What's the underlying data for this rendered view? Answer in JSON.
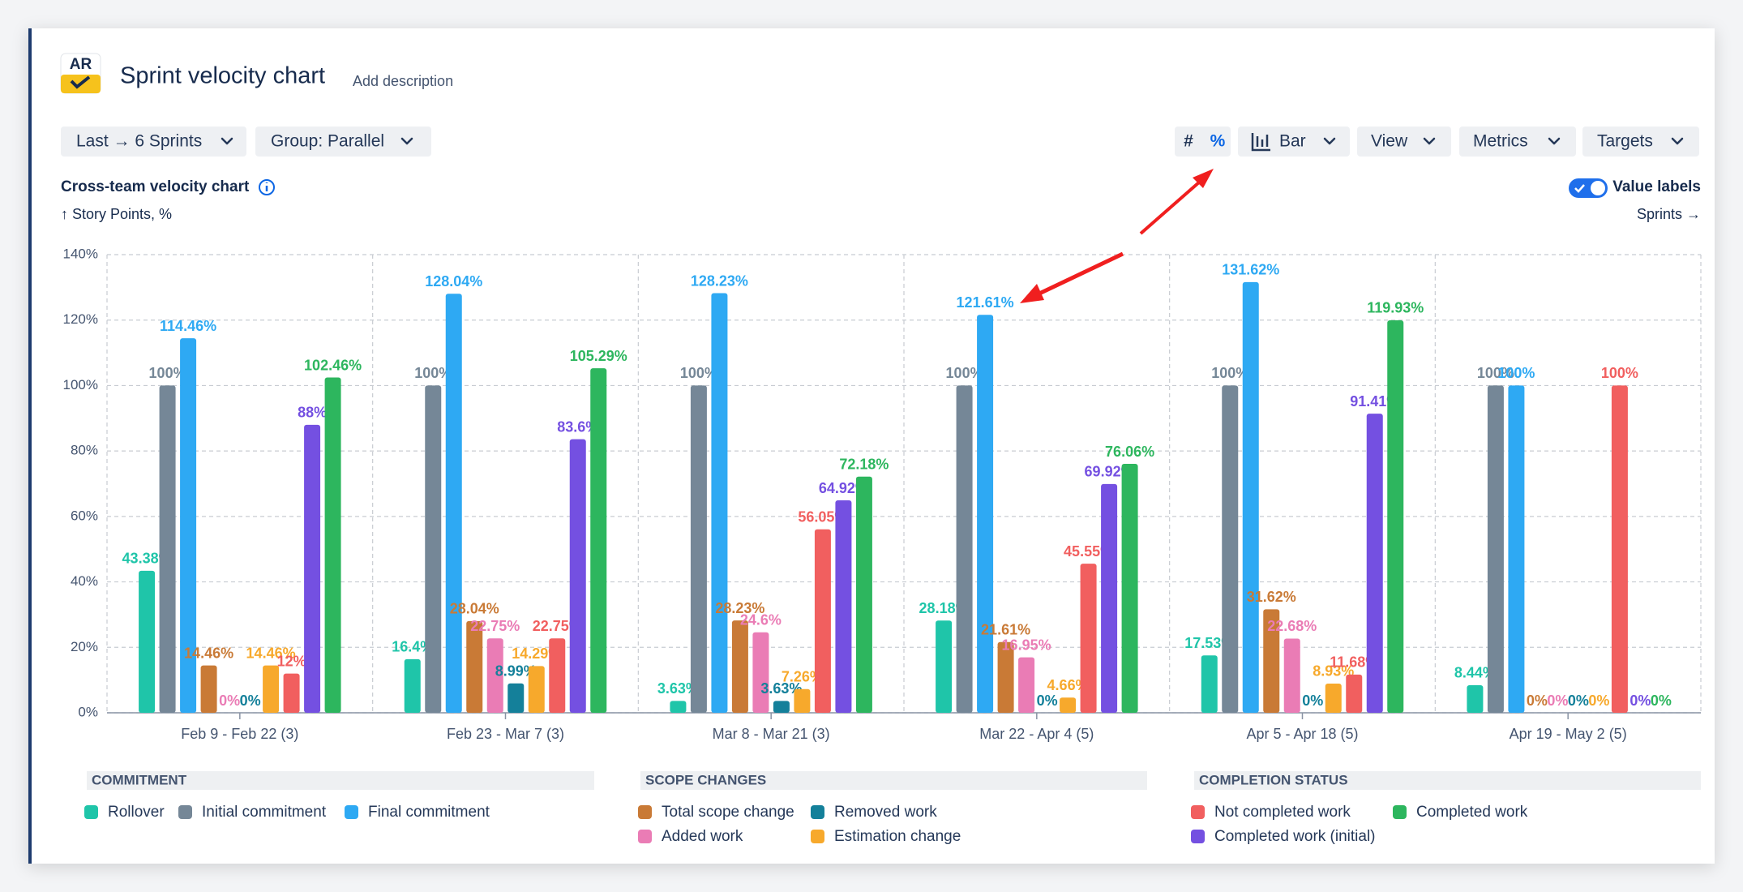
{
  "header": {
    "logo": "AR",
    "title": "Sprint velocity chart",
    "add_description": "Add description"
  },
  "toolbar": {
    "range": "Last → 6 Sprints",
    "group": "Group: Parallel",
    "count_mode": "#",
    "percent_mode": "%",
    "chart_type": "Bar",
    "view": "View",
    "metrics": "Metrics",
    "targets": "Targets"
  },
  "value_labels_toggle": "Value labels",
  "chart_data": {
    "type": "bar",
    "title": "Cross-team velocity chart",
    "y_label": "↑ Story Points, %",
    "x_label": "Sprints →",
    "categories": [
      "Feb 9 - Feb 22 (3)",
      "Feb 23 - Mar 7 (3)",
      "Mar 8 - Mar 21 (3)",
      "Mar 22 - Apr 4 (5)",
      "Apr 5 - Apr 18 (5)",
      "Apr 19 - May 2 (5)"
    ],
    "ylim": [
      0,
      140
    ],
    "yticks": [
      {
        "value": 0,
        "label": "0%"
      },
      {
        "value": 20,
        "label": "20%"
      },
      {
        "value": 40,
        "label": "40%"
      },
      {
        "value": 60,
        "label": "60%"
      },
      {
        "value": 80,
        "label": "80%"
      },
      {
        "value": 100,
        "label": "100%"
      },
      {
        "value": 120,
        "label": "120%"
      },
      {
        "value": 140,
        "label": "140%"
      }
    ],
    "grid": true,
    "legend_groups": [
      "COMMITMENT",
      "SCOPE CHANGES",
      "COMPLETION STATUS"
    ],
    "series": [
      {
        "name": "Rollover",
        "color": "#1fc5a9",
        "values": [
          43.38,
          16.4,
          3.63,
          28.18,
          17.53,
          8.44
        ],
        "value_labels": [
          "43.38%",
          "16.4%",
          "3.63%",
          "28.18%",
          "17.53%",
          "8.44%"
        ]
      },
      {
        "name": "Initial commitment",
        "color": "#758797",
        "values": [
          100,
          100,
          100,
          100,
          100,
          100
        ],
        "value_labels": [
          "100%",
          "100%",
          "100%",
          "100%",
          "100%",
          "100%"
        ]
      },
      {
        "name": "Final commitment",
        "color": "#2ea9f3",
        "values": [
          114.46,
          128.04,
          128.23,
          121.61,
          131.62,
          100
        ],
        "value_labels": [
          "114.46%",
          "128.04%",
          "128.23%",
          "121.61%",
          "131.62%",
          "100%"
        ]
      },
      {
        "name": "Total scope change",
        "color": "#c97a36",
        "values": [
          14.46,
          28.04,
          28.23,
          21.61,
          31.62,
          0
        ],
        "value_labels": [
          "14.46%",
          "28.04%",
          "28.23%",
          "21.61%",
          "31.62%",
          "0%"
        ]
      },
      {
        "name": "Added work",
        "color": "#ea7cb5",
        "values": [
          0,
          22.75,
          24.6,
          16.95,
          22.68,
          0
        ],
        "value_labels": [
          "0%",
          "22.75%",
          "24.6%",
          "16.95%",
          "22.68%",
          "0%"
        ]
      },
      {
        "name": "Removed work",
        "color": "#14809a",
        "values": [
          0,
          8.99,
          3.63,
          0,
          0,
          0
        ],
        "value_labels": [
          "0%",
          "8.99%",
          "3.63%",
          "0%",
          "0%",
          "0%"
        ]
      },
      {
        "name": "Estimation change",
        "color": "#f7a92c",
        "values": [
          14.46,
          14.29,
          7.26,
          4.66,
          8.93,
          0
        ],
        "value_labels": [
          "14.46%",
          "14.29%",
          "7.26%",
          "4.66%",
          "8.93%",
          "0%"
        ]
      },
      {
        "name": "Not completed work",
        "color": "#f15f5f",
        "values": [
          12,
          22.75,
          56.05,
          45.55,
          11.68,
          100
        ],
        "value_labels": [
          "12%",
          "22.75%",
          "56.05%",
          "45.55%",
          "11.68%",
          "100%"
        ]
      },
      {
        "name": "Completed work (initial)",
        "color": "#7450e1",
        "values": [
          88,
          83.6,
          64.92,
          69.92,
          91.41,
          0
        ],
        "value_labels": [
          "88%",
          "83.6%",
          "64.92%",
          "69.92%",
          "91.41%",
          "0%"
        ]
      },
      {
        "name": "Completed work",
        "color": "#2db65e",
        "values": [
          102.46,
          105.29,
          72.18,
          76.06,
          119.93,
          0
        ],
        "value_labels": [
          "102.46%",
          "105.29%",
          "72.18%",
          "76.06%",
          "119.93%",
          "0%"
        ]
      }
    ]
  }
}
